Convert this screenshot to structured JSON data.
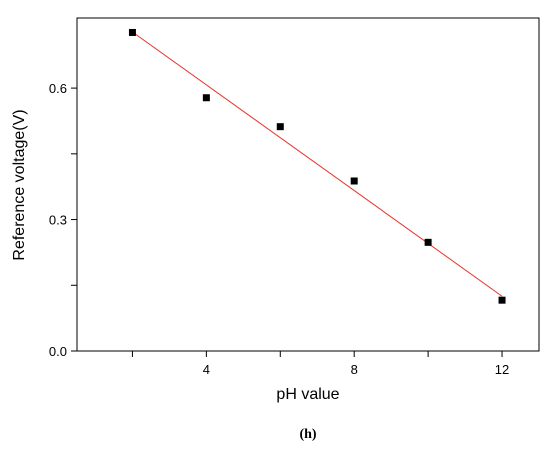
{
  "chart_data": {
    "type": "scatter",
    "xlabel": "pH value",
    "ylabel": "Reference voltage(V)",
    "panel_label": "(h)",
    "xlim": [
      0.5,
      13.0
    ],
    "ylim": [
      0.0,
      0.76
    ],
    "xticks": [
      {
        "value": 2,
        "label": ""
      },
      {
        "value": 4,
        "label": "4"
      },
      {
        "value": 6,
        "label": ""
      },
      {
        "value": 8,
        "label": "8"
      },
      {
        "value": 10,
        "label": ""
      },
      {
        "value": 12,
        "label": "12"
      }
    ],
    "yticks": [
      {
        "value": 0.0,
        "label": "0.0"
      },
      {
        "value": 0.15,
        "label": ""
      },
      {
        "value": 0.3,
        "label": "0.3"
      },
      {
        "value": 0.45,
        "label": ""
      },
      {
        "value": 0.6,
        "label": "0.6"
      }
    ],
    "points": [
      {
        "x": 2,
        "y": 0.727
      },
      {
        "x": 4,
        "y": 0.578
      },
      {
        "x": 6,
        "y": 0.512
      },
      {
        "x": 8,
        "y": 0.388
      },
      {
        "x": 10,
        "y": 0.248
      },
      {
        "x": 12,
        "y": 0.116
      }
    ],
    "fit_line": {
      "x": [
        2,
        12
      ],
      "y": [
        0.728,
        0.125
      ]
    },
    "grid": false,
    "marker_color": "#000000",
    "fit_color": "#e8312a",
    "axis_color": "#000000"
  }
}
